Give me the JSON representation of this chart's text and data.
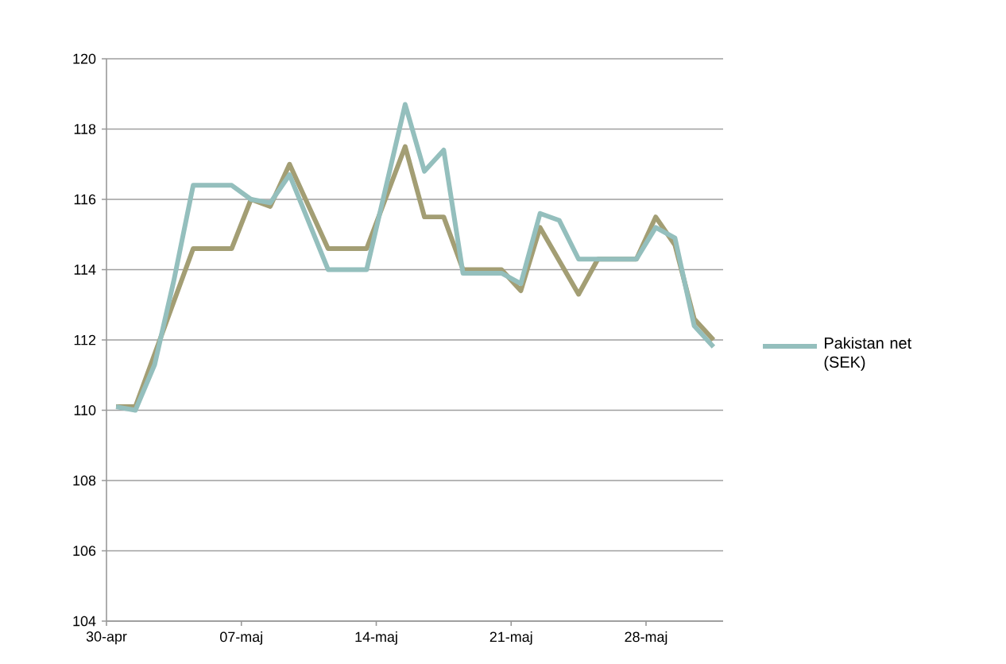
{
  "chart_data": {
    "type": "line",
    "series": [
      {
        "color": "#a39e74",
        "x": [
          0.5,
          1.5,
          4.5,
          6.5,
          7.5,
          8.5,
          9.5,
          11.5,
          13.5,
          15.5,
          16.5,
          17.5,
          18.5,
          20.5,
          21.5,
          22.5,
          24.5,
          25.5,
          27.5,
          28.5,
          29.5,
          30.5,
          31.5
        ],
        "values": [
          110.1,
          110.1,
          114.6,
          114.6,
          116.0,
          115.8,
          117.0,
          114.6,
          114.6,
          117.5,
          115.5,
          115.5,
          114.0,
          114.0,
          113.4,
          115.2,
          113.3,
          114.3,
          114.3,
          115.5,
          114.7,
          112.6,
          112.0
        ]
      },
      {
        "name": "Pakistan net (SEK)",
        "color": "#94bfbd",
        "x": [
          0.5,
          1.5,
          2.5,
          3.5,
          4.5,
          6.5,
          7.5,
          8.5,
          9.5,
          11.5,
          13.5,
          15.5,
          16.5,
          17.5,
          18.5,
          20.5,
          21.5,
          22.5,
          23.5,
          24.5,
          27.5,
          28.5,
          29.5,
          30.5,
          31.5
        ],
        "values": [
          110.1,
          110.0,
          111.3,
          113.7,
          116.4,
          116.4,
          116.0,
          115.9,
          116.7,
          114.0,
          114.0,
          118.7,
          116.8,
          117.4,
          113.9,
          113.9,
          113.6,
          115.6,
          115.4,
          114.3,
          114.3,
          115.2,
          114.9,
          112.4,
          111.8
        ]
      }
    ],
    "xlim": [
      0,
      32
    ],
    "xticks": [
      {
        "value": 0,
        "label": "30-apr"
      },
      {
        "value": 7,
        "label": "07-maj"
      },
      {
        "value": 14,
        "label": "14-maj"
      },
      {
        "value": 21,
        "label": "21-maj"
      },
      {
        "value": 28,
        "label": "28-maj"
      }
    ],
    "ylim": [
      104,
      120
    ],
    "yticks": [
      104,
      106,
      108,
      110,
      112,
      114,
      116,
      118,
      120
    ],
    "grid": "y",
    "legend": "right",
    "marker": "none",
    "line_style": "solid"
  }
}
